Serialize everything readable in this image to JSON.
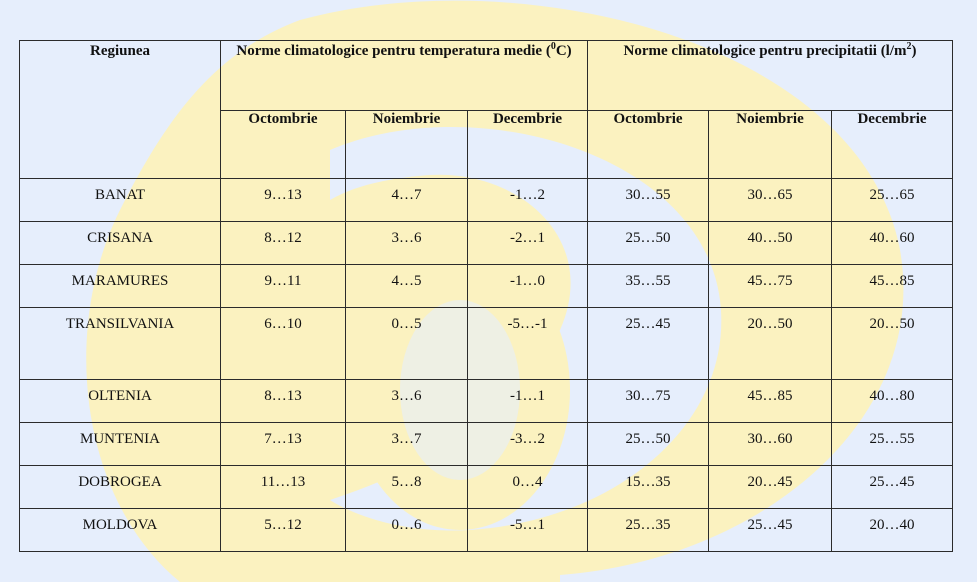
{
  "table": {
    "header": {
      "region": "Regiunea",
      "temp_group": "Norme climatologice pentru temperatura medie (",
      "temp_sup": "0",
      "temp_unit_end": "C)",
      "precip_group": "Norme climatologice pentru precipitatii (l/m",
      "precip_sup": "2",
      "precip_end": ")",
      "months": [
        "Octombrie",
        "Noiembrie",
        "Decembrie",
        "Octombrie",
        "Noiembrie",
        "Decembrie"
      ]
    },
    "rows": [
      {
        "region": "BANAT",
        "t_oct": "9…13",
        "t_nov": "4…7",
        "t_dec": "-1…2",
        "p_oct": "30…55",
        "p_nov": "30…65",
        "p_dec": "25…65"
      },
      {
        "region": "CRISANA",
        "t_oct": "8…12",
        "t_nov": "3…6",
        "t_dec": "-2…1",
        "p_oct": "25…50",
        "p_nov": "40…50",
        "p_dec": "40…60"
      },
      {
        "region": "MARAMURES",
        "t_oct": "9…11",
        "t_nov": "4…5",
        "t_dec": "-1…0",
        "p_oct": "35…55",
        "p_nov": "45…75",
        "p_dec": "45…85"
      },
      {
        "region": "TRANSILVANIA",
        "t_oct": "6…10",
        "t_nov": "0…5",
        "t_dec": "-5…-1",
        "p_oct": "25…45",
        "p_nov": "20…50",
        "p_dec": "20…50"
      },
      {
        "region": "OLTENIA",
        "t_oct": "8…13",
        "t_nov": "3…6",
        "t_dec": "-1…1",
        "p_oct": "30…75",
        "p_nov": "45…85",
        "p_dec": "40…80"
      },
      {
        "region": "MUNTENIA",
        "t_oct": "7…13",
        "t_nov": "3…7",
        "t_dec": "-3…2",
        "p_oct": "25…50",
        "p_nov": "30…60",
        "p_dec": "25…55"
      },
      {
        "region": "DOBROGEA",
        "t_oct": "11…13",
        "t_nov": "5…8",
        "t_dec": "0…4",
        "p_oct": "15…35",
        "p_nov": "20…45",
        "p_dec": "25…45"
      },
      {
        "region": "MOLDOVA",
        "t_oct": "5…12",
        "t_nov": "0…6",
        "t_dec": "-5…1",
        "p_oct": "25…35",
        "p_nov": "25…45",
        "p_dec": "20…40"
      }
    ]
  },
  "colors": {
    "background": "#e6eefc",
    "watermark_yellow": "#fbf2c0",
    "border": "#2b2b2b"
  }
}
